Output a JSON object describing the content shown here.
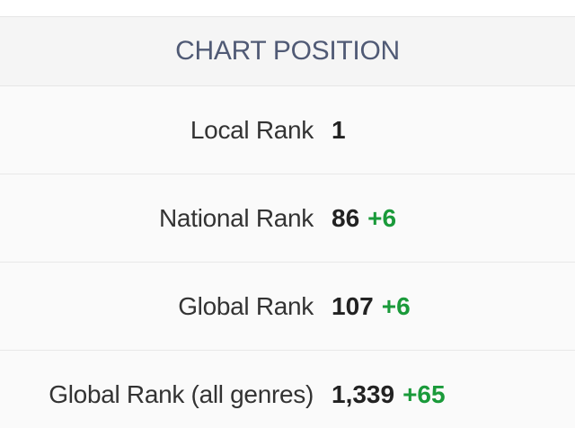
{
  "header": {
    "title": "CHART POSITION"
  },
  "table": {
    "rows": [
      {
        "label": "Local Rank",
        "rank": "1"
      },
      {
        "label": "National Rank",
        "rank": "86",
        "change": "+6"
      },
      {
        "label": "Global Rank",
        "rank": "107",
        "change": "+6"
      },
      {
        "label": "Global Rank (all genres)",
        "rank": "1,339",
        "change": "+65"
      }
    ]
  }
}
